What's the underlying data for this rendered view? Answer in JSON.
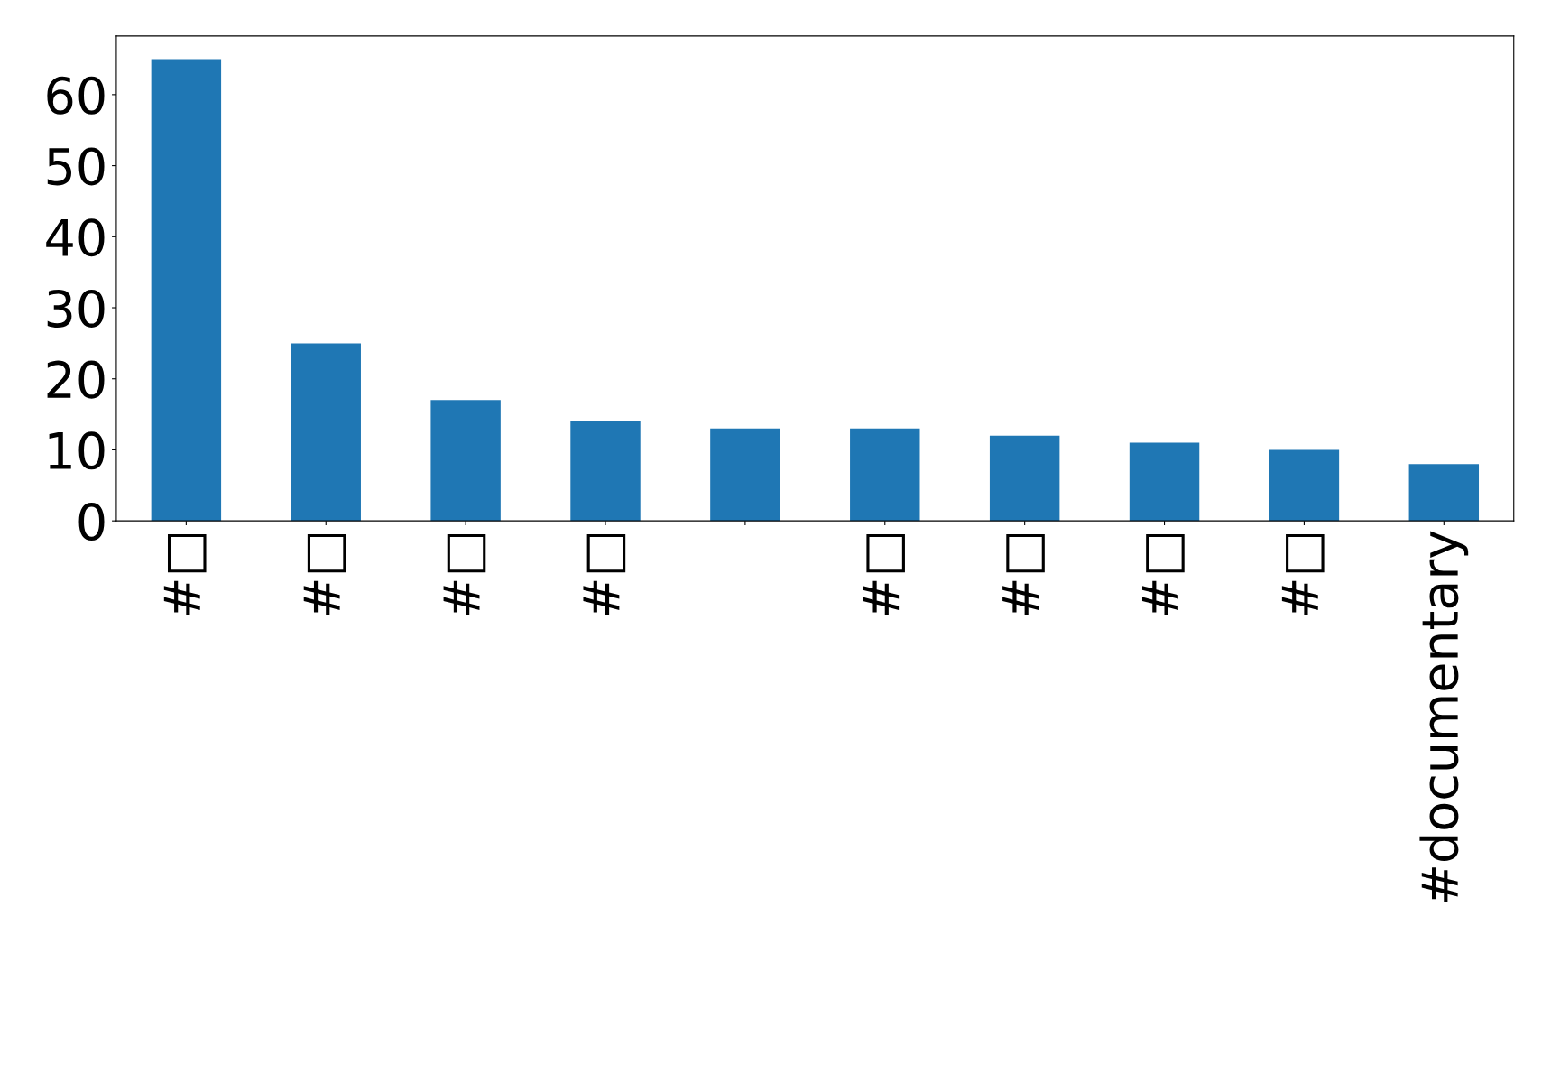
{
  "chart_data": {
    "type": "bar",
    "categories": [
      "#□",
      "#□",
      "#□",
      "#□",
      null,
      "#□",
      "#□",
      "#□",
      "#□",
      "#documentary"
    ],
    "values": [
      65,
      25,
      17,
      14,
      13,
      13,
      12,
      11,
      10,
      8
    ],
    "color": "#1f77b4",
    "ylim": [
      0,
      68.25
    ],
    "yticks": [
      0,
      10,
      20,
      30,
      40,
      50,
      60
    ],
    "grid": false,
    "legend": false
  }
}
